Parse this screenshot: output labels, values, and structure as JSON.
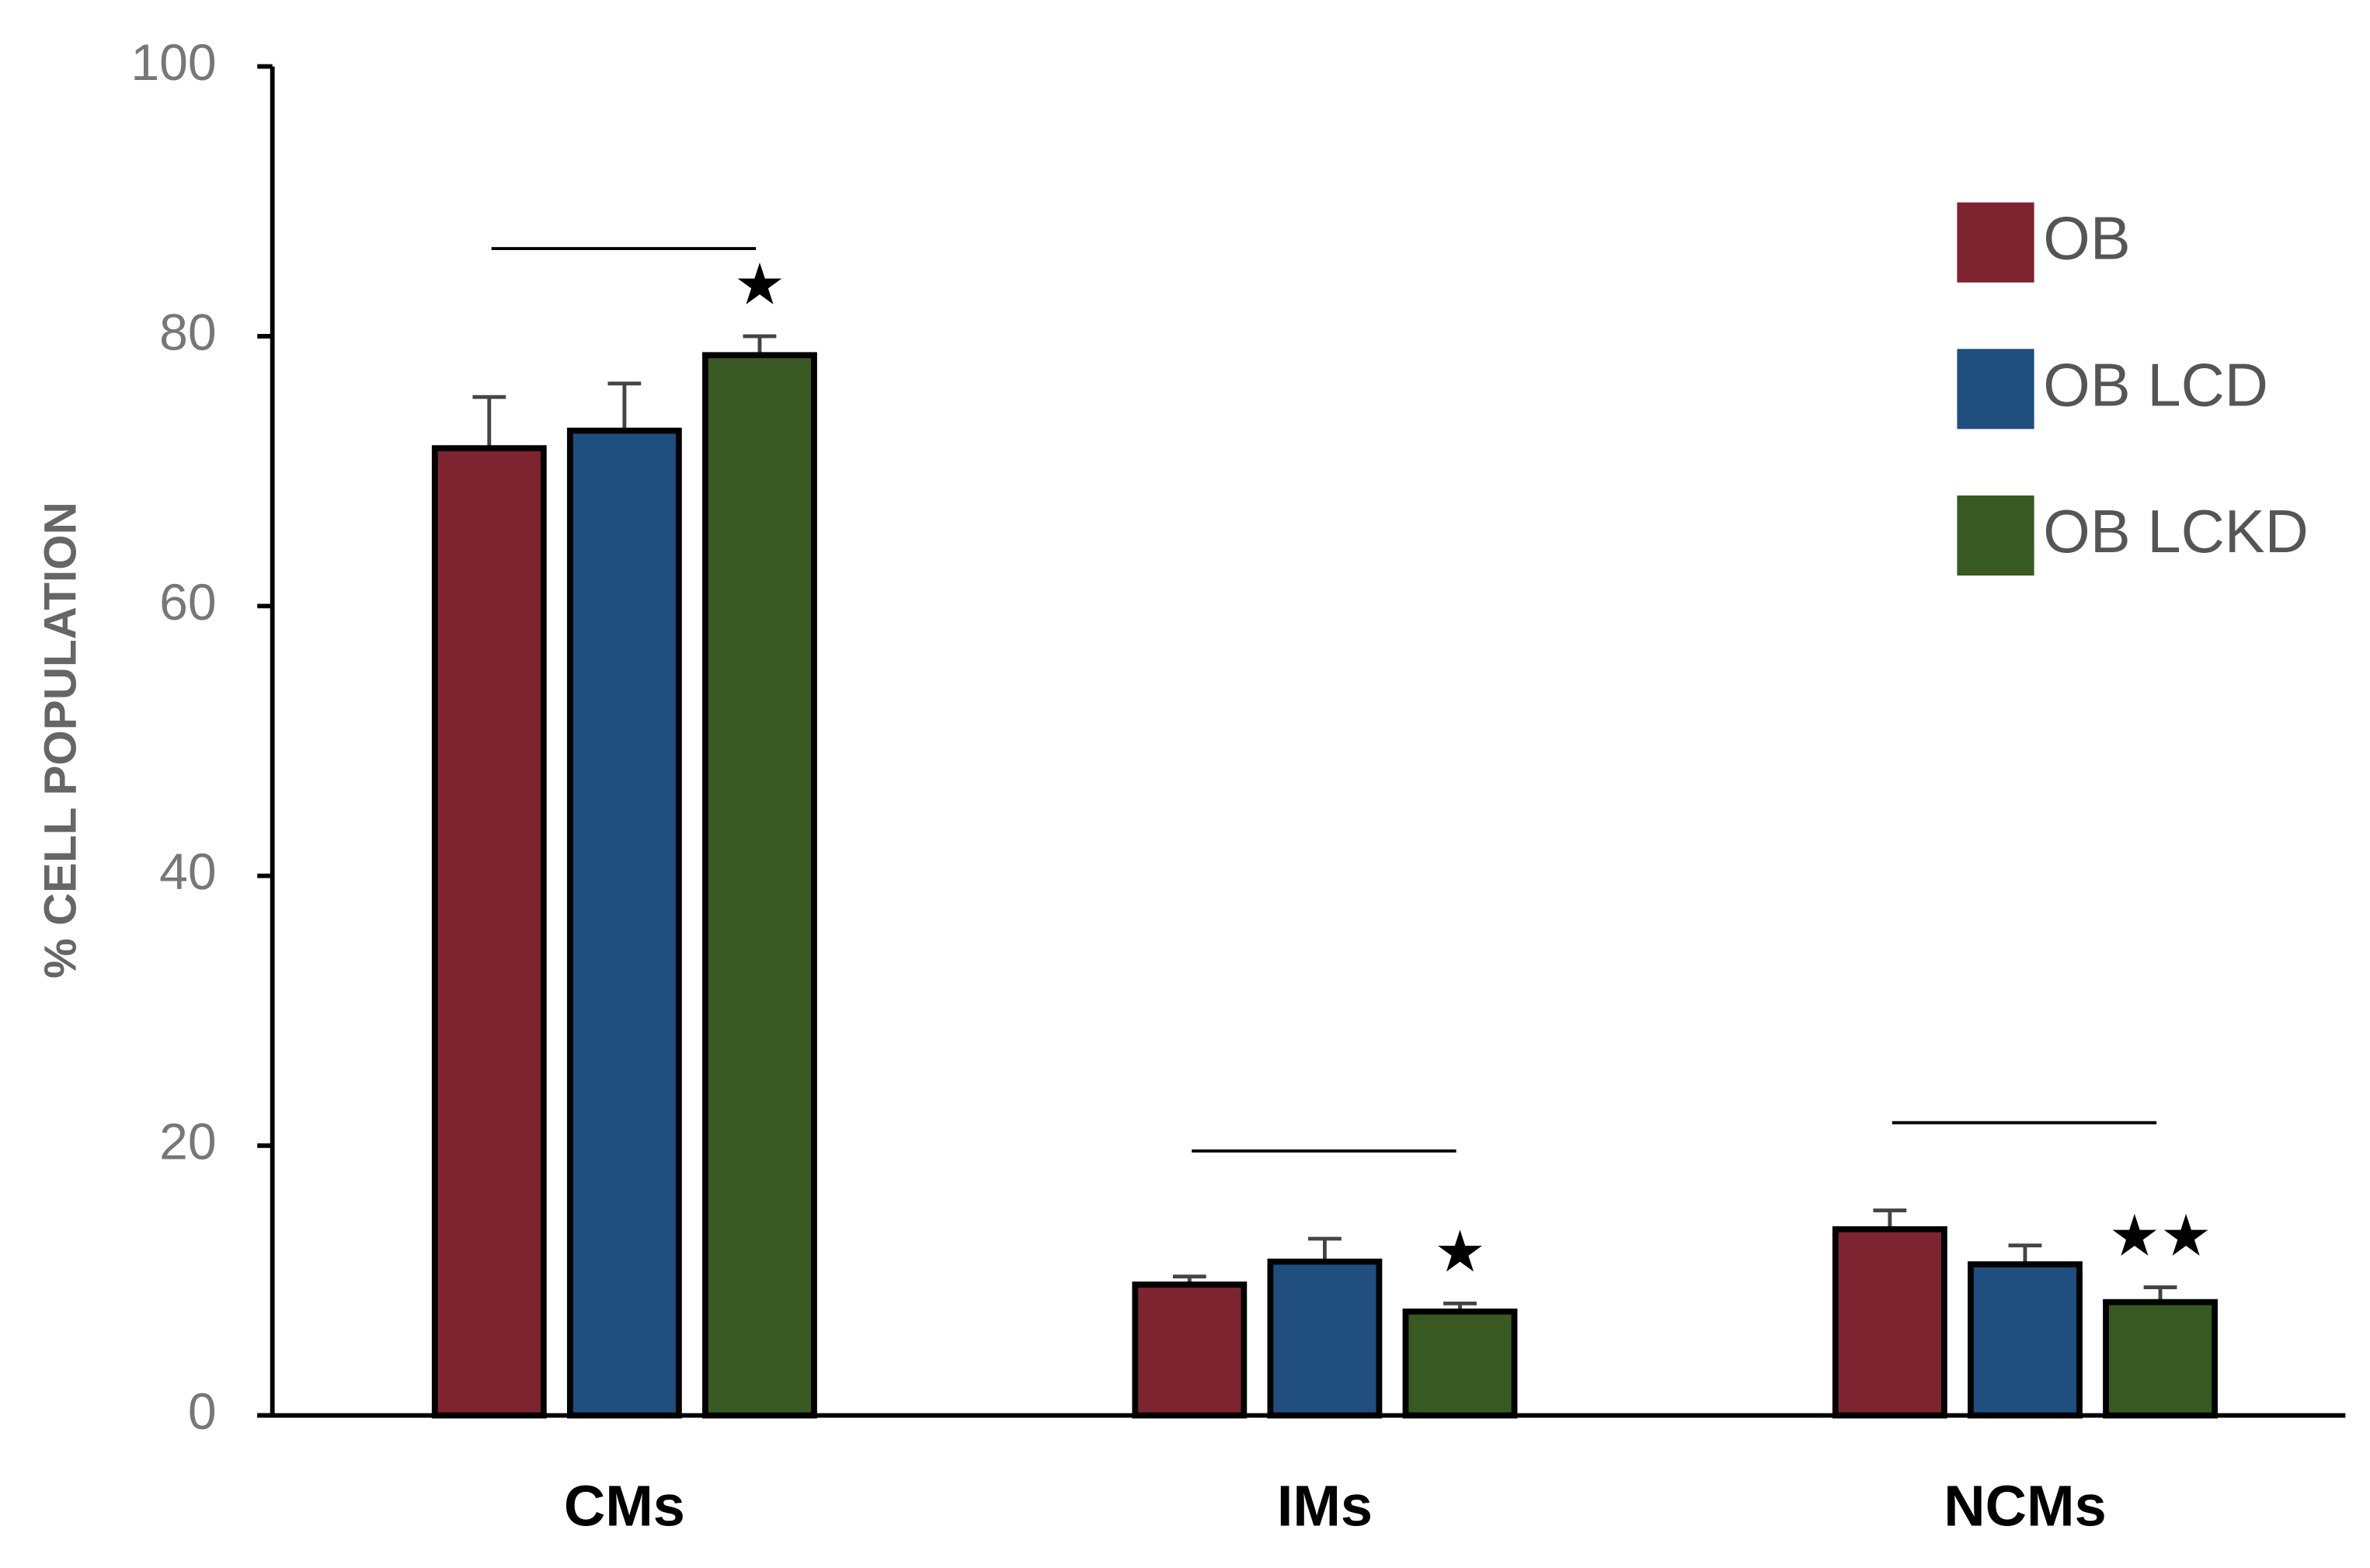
{
  "chart_data": {
    "type": "bar",
    "y_label": "% CELL POPULATION",
    "categories": [
      "CMs",
      "IMs",
      "NCMs"
    ],
    "series": [
      {
        "name": "OB",
        "color": "#7e2431",
        "values": [
          71.7,
          9.7,
          13.8
        ],
        "errors": [
          3.8,
          0.6,
          1.4
        ]
      },
      {
        "name": "OB LCD",
        "color": "#1f4e7f",
        "values": [
          73.0,
          11.4,
          11.2
        ],
        "errors": [
          3.5,
          1.7,
          1.4
        ]
      },
      {
        "name": "OB LCKD",
        "color": "#385a22",
        "values": [
          78.6,
          7.7,
          8.4
        ],
        "errors": [
          1.4,
          0.6,
          1.1
        ]
      }
    ],
    "annotations": [
      "★",
      "★",
      "★★"
    ],
    "ylim": [
      0,
      100
    ],
    "yticks": [
      0,
      20,
      40,
      60,
      80,
      100
    ],
    "legend": "top-right"
  }
}
